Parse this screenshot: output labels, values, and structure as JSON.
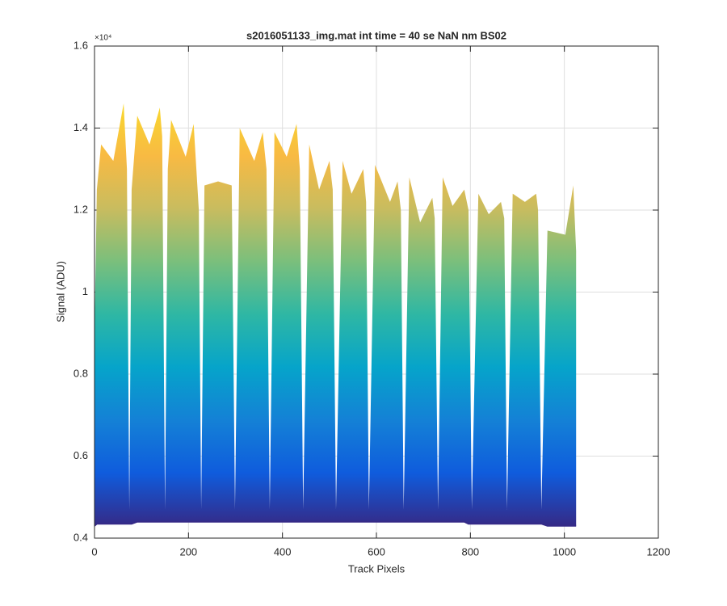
{
  "chart_data": {
    "type": "area",
    "title": "s2016051133_img.mat int time = 40 se  NaN nm BS02",
    "x_label": "Track Pixels",
    "y_label": "Signal (ADU)",
    "y_multiplier": "×10⁴",
    "x": [
      0,
      5,
      14,
      40,
      62,
      69,
      74,
      79,
      91,
      117,
      139,
      144,
      150,
      156,
      163,
      194,
      211,
      222,
      227,
      234,
      263,
      292,
      299,
      309,
      340,
      358,
      366,
      373,
      383,
      409,
      430,
      437,
      444,
      457,
      478,
      500,
      507,
      514,
      528,
      547,
      572,
      578,
      584,
      597,
      629,
      645,
      652,
      658,
      670,
      693,
      719,
      724,
      731,
      741,
      762,
      787,
      796,
      803,
      817,
      839,
      865,
      872,
      878,
      890,
      916,
      940,
      944,
      951,
      964,
      1002,
      1019,
      1025
    ],
    "upper": {
      "values": [
        0.9,
        1.25,
        1.36,
        1.32,
        1.46,
        1.3,
        0.47,
        1.25,
        1.43,
        1.36,
        1.45,
        1.38,
        0.47,
        1.3,
        1.42,
        1.33,
        1.41,
        1.2,
        0.47,
        1.26,
        1.27,
        1.26,
        0.47,
        1.4,
        1.32,
        1.39,
        1.3,
        0.47,
        1.39,
        1.33,
        1.41,
        1.3,
        0.47,
        1.36,
        1.25,
        1.32,
        1.25,
        0.47,
        1.32,
        1.24,
        1.3,
        1.22,
        0.47,
        1.31,
        1.22,
        1.27,
        1.2,
        0.47,
        1.28,
        1.17,
        1.23,
        1.18,
        0.47,
        1.28,
        1.21,
        1.25,
        1.2,
        0.47,
        1.24,
        1.19,
        1.22,
        1.18,
        0.47,
        1.24,
        1.22,
        1.24,
        1.2,
        0.47,
        1.15,
        1.14,
        1.26,
        1.1
      ]
    },
    "lower": {
      "values": [
        0.43,
        0.435,
        0.435,
        0.435,
        0.435,
        0.435,
        0.435,
        0.435,
        0.44,
        0.44,
        0.44,
        0.44,
        0.44,
        0.44,
        0.44,
        0.44,
        0.44,
        0.44,
        0.44,
        0.44,
        0.44,
        0.44,
        0.44,
        0.44,
        0.44,
        0.44,
        0.44,
        0.44,
        0.44,
        0.44,
        0.44,
        0.44,
        0.44,
        0.44,
        0.44,
        0.44,
        0.44,
        0.44,
        0.44,
        0.44,
        0.44,
        0.44,
        0.44,
        0.44,
        0.44,
        0.44,
        0.44,
        0.44,
        0.44,
        0.44,
        0.44,
        0.44,
        0.44,
        0.44,
        0.44,
        0.44,
        0.435,
        0.435,
        0.435,
        0.435,
        0.435,
        0.435,
        0.435,
        0.435,
        0.435,
        0.435,
        0.435,
        0.435,
        0.43,
        0.43,
        0.43,
        0.43
      ]
    },
    "colormap": [
      "#352a87",
      "#0f5cdd",
      "#1481d6",
      "#06a4ca",
      "#2eb7a4",
      "#7abf7c",
      "#c8bc5f",
      "#f8ba43",
      "#f9d92e"
    ],
    "xlim": [
      0,
      1200
    ],
    "xticks": [
      0,
      200,
      400,
      600,
      800,
      1000,
      1200
    ],
    "ylim": [
      0.4,
      1.6
    ],
    "yticks": [
      0.4,
      0.6,
      0.8,
      1,
      1.2,
      1.4,
      1.6
    ],
    "grid": true
  }
}
